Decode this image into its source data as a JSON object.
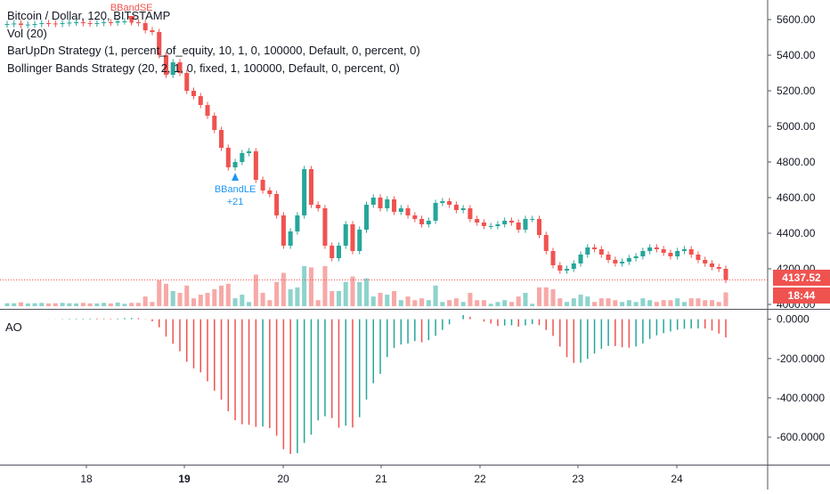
{
  "legend": {
    "title": "Bitcoin / Dollar, 120, BITSTAMP",
    "vol": "Vol (20)",
    "strategy1": "BarUpDn Strategy (1, percent_of_equity, 10, 1, 0, 100000, Default, 0, percent, 0)",
    "strategy2": "Bollinger Bands Strategy (20, 2, 1, 0, fixed, 1, 100000, Default, 0, percent, 0)"
  },
  "ao_label": "AO",
  "last_price": "4137.52",
  "countdown": "18:44",
  "signals": {
    "short": "BBandSE",
    "long": "BBandLE",
    "long_qty": "+21"
  },
  "colors": {
    "up": "#26a69a",
    "down": "#ef5350",
    "vol_up": "#8dd3cc",
    "vol_down": "#f7a9a7",
    "axis": "#131722",
    "grid": "#e0e3eb"
  },
  "chart_data": [
    {
      "type": "candlestick",
      "y_ticks": [
        "4000.00",
        "4200.00",
        "4400.00",
        "4600.00",
        "4800.00",
        "5000.00",
        "5200.00",
        "5400.00",
        "5600.00"
      ],
      "ylim": [
        3990,
        5670
      ],
      "x_ticks": [
        "18",
        "19",
        "20",
        "21",
        "22",
        "23",
        "24"
      ],
      "x_ticks_bold": [
        "19"
      ],
      "closes": [
        5575,
        5578,
        5570,
        5572,
        5575,
        5580,
        5578,
        5575,
        5580,
        5583,
        5585,
        5580,
        5578,
        5580,
        5585,
        5583,
        5590,
        5590,
        5585,
        5580,
        5540,
        5530,
        5400,
        5290,
        5360,
        5300,
        5200,
        5170,
        5120,
        5060,
        4980,
        4880,
        4770,
        4800,
        4850,
        4860,
        4700,
        4640,
        4620,
        4500,
        4330,
        4410,
        4500,
        4760,
        4560,
        4540,
        4330,
        4260,
        4330,
        4450,
        4300,
        4420,
        4560,
        4600,
        4540,
        4590,
        4520,
        4540,
        4500,
        4480,
        4450,
        4470,
        4570,
        4580,
        4560,
        4530,
        4540,
        4480,
        4460,
        4440,
        4440,
        4450,
        4470,
        4460,
        4420,
        4480,
        4480,
        4390,
        4300,
        4220,
        4190,
        4200,
        4230,
        4280,
        4320,
        4310,
        4280,
        4250,
        4230,
        4240,
        4260,
        4270,
        4300,
        4320,
        4310,
        4290,
        4270,
        4300,
        4310,
        4280,
        4250,
        4230,
        4210,
        4200,
        4137.52
      ],
      "volume_max": 1
    },
    {
      "type": "bar",
      "name": "AO",
      "y_ticks": [
        "0.0000",
        "-200.0000",
        "-400.0000",
        "-600.0000"
      ],
      "ylim": [
        -740,
        30
      ]
    }
  ]
}
